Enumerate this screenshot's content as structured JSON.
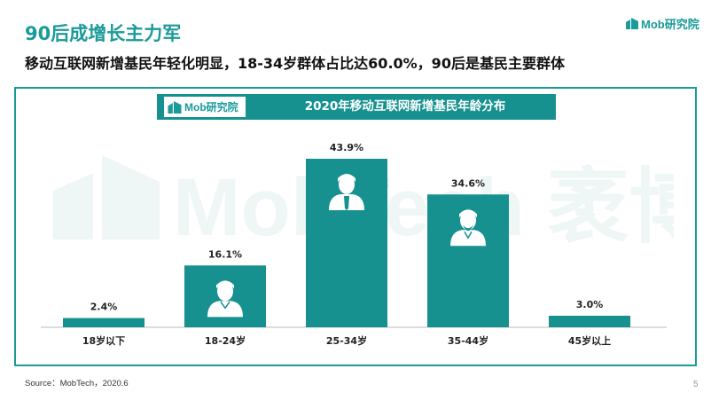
{
  "header": {
    "title": "90后成增长主力军",
    "subtitle": "移动互联网新增基民年轻化明显，18-34岁群体占比达60.0%，90后是基民主要群体",
    "logo_text": "Mob研究院"
  },
  "chart_header": {
    "logo_text": "Mob研究院"
  },
  "watermark": {
    "text": "MobTech 袤博"
  },
  "footer": {
    "source": "Source：MobTech，2020.6",
    "page": "5"
  },
  "colors": {
    "accent": "#1a9b9a",
    "bar": "#16918f",
    "header_bg": "#16918f",
    "watermark": "#eef6f6"
  },
  "chart_data": {
    "type": "bar",
    "title": "2020年移动互联网新增基民年龄分布",
    "categories": [
      "18岁以下",
      "18-24岁",
      "25-34岁",
      "35-44岁",
      "45岁以上"
    ],
    "values": [
      2.4,
      16.1,
      43.9,
      34.6,
      3.0
    ],
    "data_labels": [
      "2.4%",
      "16.1%",
      "43.9%",
      "34.6%",
      "3.0%"
    ],
    "icons": [
      "",
      "young-person-icon",
      "business-person-icon",
      "elder-person-icon",
      ""
    ],
    "xlabel": "",
    "ylabel": "",
    "ylim": [
      0,
      43.9
    ],
    "grid": false,
    "legend": "none"
  }
}
